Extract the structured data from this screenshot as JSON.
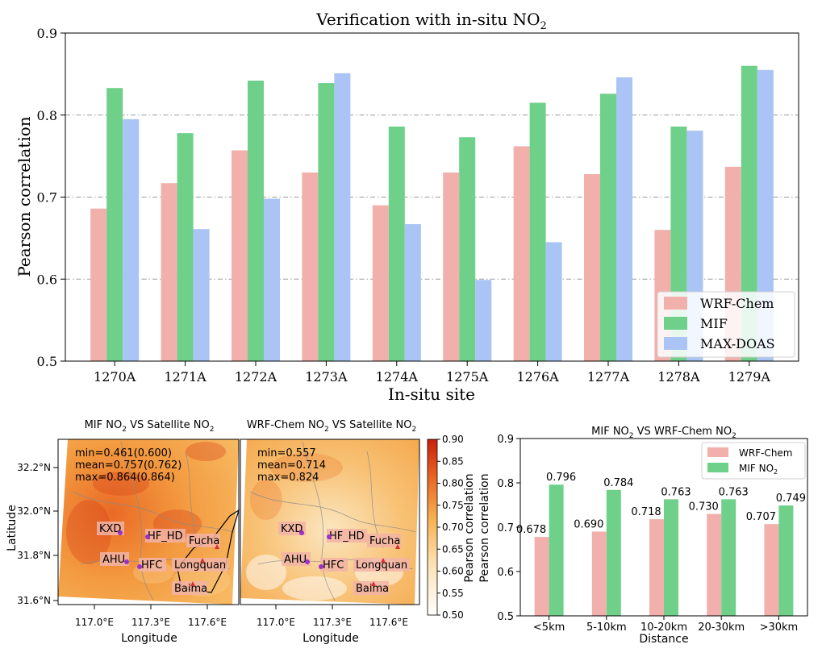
{
  "colors": {
    "wrf": "#f2b0ac",
    "mif": "#6fd08a",
    "doas": "#a9c4f5",
    "grid": "#9a9a9a"
  },
  "chart_data": [
    {
      "type": "bar",
      "title": "Verification with in-situ NO",
      "title_sub": "2",
      "xlabel": "In-situ site",
      "ylabel": "Pearson correlation",
      "ylim": [
        0.5,
        0.9
      ],
      "yticks": [
        0.5,
        0.6,
        0.7,
        0.8,
        0.9
      ],
      "ytick_labels": [
        "0.5",
        "0.6",
        "0.7",
        "0.8",
        "0.9"
      ],
      "grid": "horizontal dash-dot",
      "legend_position": "lower-right",
      "categories": [
        "1270A",
        "1271A",
        "1272A",
        "1273A",
        "1274A",
        "1275A",
        "1276A",
        "1277A",
        "1278A",
        "1279A"
      ],
      "series": [
        {
          "name": "WRF-Chem",
          "values": [
            0.686,
            0.717,
            0.757,
            0.73,
            0.69,
            0.73,
            0.762,
            0.728,
            0.66,
            0.737
          ]
        },
        {
          "name": "MIF",
          "values": [
            0.833,
            0.778,
            0.842,
            0.839,
            0.786,
            0.773,
            0.815,
            0.826,
            0.786,
            0.86
          ]
        },
        {
          "name": "MAX-DOAS",
          "values": [
            0.795,
            0.661,
            0.698,
            0.851,
            0.667,
            0.599,
            0.645,
            0.846,
            0.781,
            0.855
          ]
        }
      ]
    },
    {
      "type": "heatmap",
      "title": "MIF NO",
      "title_mid": " VS Satellite NO",
      "sub": "2",
      "stats": [
        "min=0.461(0.600)",
        "mean=0.757(0.762)",
        "max=0.864(0.864)"
      ],
      "xlabel": "Longitude",
      "ylabel": "Latitude",
      "xtick_labels": [
        "117.0°E",
        "117.3°E",
        "117.6°E"
      ],
      "ytick_labels": [
        "32.2°N",
        "32.0°N",
        "31.8°N",
        "31.6°N"
      ],
      "sites": [
        "KXD",
        "HF_HD",
        "Fucha",
        "AHU",
        "HFC",
        "Longquan",
        "Baima"
      ]
    },
    {
      "type": "heatmap",
      "title": "WRF-Chem NO",
      "title_mid": " VS Satellite NO",
      "sub": "2",
      "stats": [
        "min=0.557",
        "mean=0.714",
        "max=0.824"
      ],
      "xlabel": "Longitude",
      "xtick_labels": [
        "117.0°E",
        "117.3°E",
        "117.6°E"
      ],
      "sites": [
        "KXD",
        "HF_HD",
        "Fucha",
        "AHU",
        "HFC",
        "Longquan",
        "Baima"
      ],
      "colorbar": {
        "label": "Pearson correlation",
        "range": [
          0.5,
          0.9
        ],
        "tick_labels": [
          "0.90",
          "0.85",
          "0.80",
          "0.75",
          "0.70",
          "0.65",
          "0.60",
          "0.55",
          "0.50"
        ]
      }
    },
    {
      "type": "bar",
      "title": "MIF NO",
      "title_mid": " VS WRF-Chem NO",
      "sub": "2",
      "xlabel": "Distance",
      "ylabel": "Pearson correlation",
      "ylim": [
        0.5,
        0.9
      ],
      "ytick_labels": [
        "0.5",
        "0.6",
        "0.7",
        "0.8",
        "0.9"
      ],
      "legend_position": "top-right",
      "categories": [
        "<5km",
        "5-10km",
        "10-20km",
        "20-30km",
        ">30km"
      ],
      "series": [
        {
          "name": "WRF-Chem",
          "values": [
            0.678,
            0.69,
            0.718,
            0.73,
            0.707
          ],
          "labels": [
            "0.678",
            "0.690",
            "0.718",
            "0.730",
            "0.707"
          ]
        },
        {
          "name": "MIF NO",
          "name_sub": "2",
          "values": [
            0.796,
            0.784,
            0.763,
            0.763,
            0.749
          ],
          "labels": [
            "0.796",
            "0.784",
            "0.763",
            "0.763",
            "0.749"
          ]
        }
      ]
    }
  ]
}
